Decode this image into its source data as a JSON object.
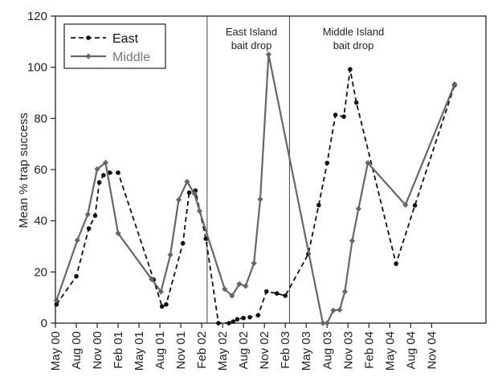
{
  "chart_data": {
    "type": "line",
    "ylabel": "Mean % trap success",
    "xlabel": "",
    "ylim": [
      0,
      120
    ],
    "yticks": [
      0,
      20,
      40,
      60,
      80,
      100,
      120
    ],
    "x_range": [
      0,
      20.6
    ],
    "grid": false,
    "legend_position": "top-left",
    "categories": [
      "May 00",
      "Aug 00",
      "Nov 00",
      "Feb 01",
      "May 01",
      "Aug 01",
      "Nov 01",
      "Feb 02",
      "May 02",
      "Aug 02",
      "Nov 02",
      "Feb 03",
      "May 03",
      "Aug 03",
      "Nov 03",
      "Feb 04",
      "May 04",
      "Aug 04",
      "Nov 04"
    ],
    "annotations": [
      {
        "label_lines": [
          "East Island",
          "bait drop"
        ],
        "x": 7.26
      },
      {
        "label_lines": [
          "Middle Island",
          "bait drop"
        ],
        "x": 11.2
      }
    ],
    "series": [
      {
        "name": "East",
        "color": "#111111",
        "dash": true,
        "marker": "circle",
        "x": [
          0.05,
          1.0,
          1.6,
          1.9,
          2.1,
          2.3,
          2.6,
          3.0,
          4.7,
          5.1,
          5.3,
          6.1,
          6.4,
          6.7,
          7.2,
          7.8,
          8.3,
          8.5,
          8.7,
          9.0,
          9.3,
          9.7,
          10.1,
          10.6,
          11.0,
          12.1,
          12.6,
          13.0,
          13.4,
          13.8,
          14.1,
          14.4,
          16.3,
          17.2,
          19.1
        ],
        "y": [
          7.3,
          18.3,
          37,
          42,
          55,
          57.8,
          58.8,
          58.8,
          17,
          6.5,
          7.3,
          31.2,
          51,
          51.8,
          33,
          0,
          0,
          0.6,
          1.5,
          2,
          2.3,
          3.1,
          12.4,
          11.6,
          10.7,
          27,
          46.1,
          62.6,
          81.4,
          80.7,
          99.2,
          86.2,
          23.2,
          46,
          93
        ]
      },
      {
        "name": "Middle",
        "color": "#666666",
        "dash": false,
        "marker": "diamond",
        "x": [
          0.05,
          1.05,
          1.55,
          2.0,
          2.4,
          3.0,
          4.6,
          5.05,
          5.5,
          5.9,
          6.3,
          6.65,
          6.9,
          8.1,
          8.45,
          8.8,
          9.1,
          9.5,
          9.8,
          10.2,
          12.8,
          13.0,
          13.3,
          13.6,
          13.85,
          14.2,
          14.5,
          14.95,
          16.75,
          19.1
        ],
        "y": [
          8.9,
          32.4,
          42.5,
          60.2,
          62.7,
          35.1,
          17.2,
          12.3,
          26.7,
          48.2,
          55.3,
          50.6,
          43.8,
          13.3,
          10.7,
          15.3,
          14.5,
          23.4,
          48.4,
          105,
          0,
          0,
          5,
          5.2,
          12.3,
          32.2,
          44.7,
          62.6,
          46.2,
          93.4
        ]
      }
    ]
  }
}
